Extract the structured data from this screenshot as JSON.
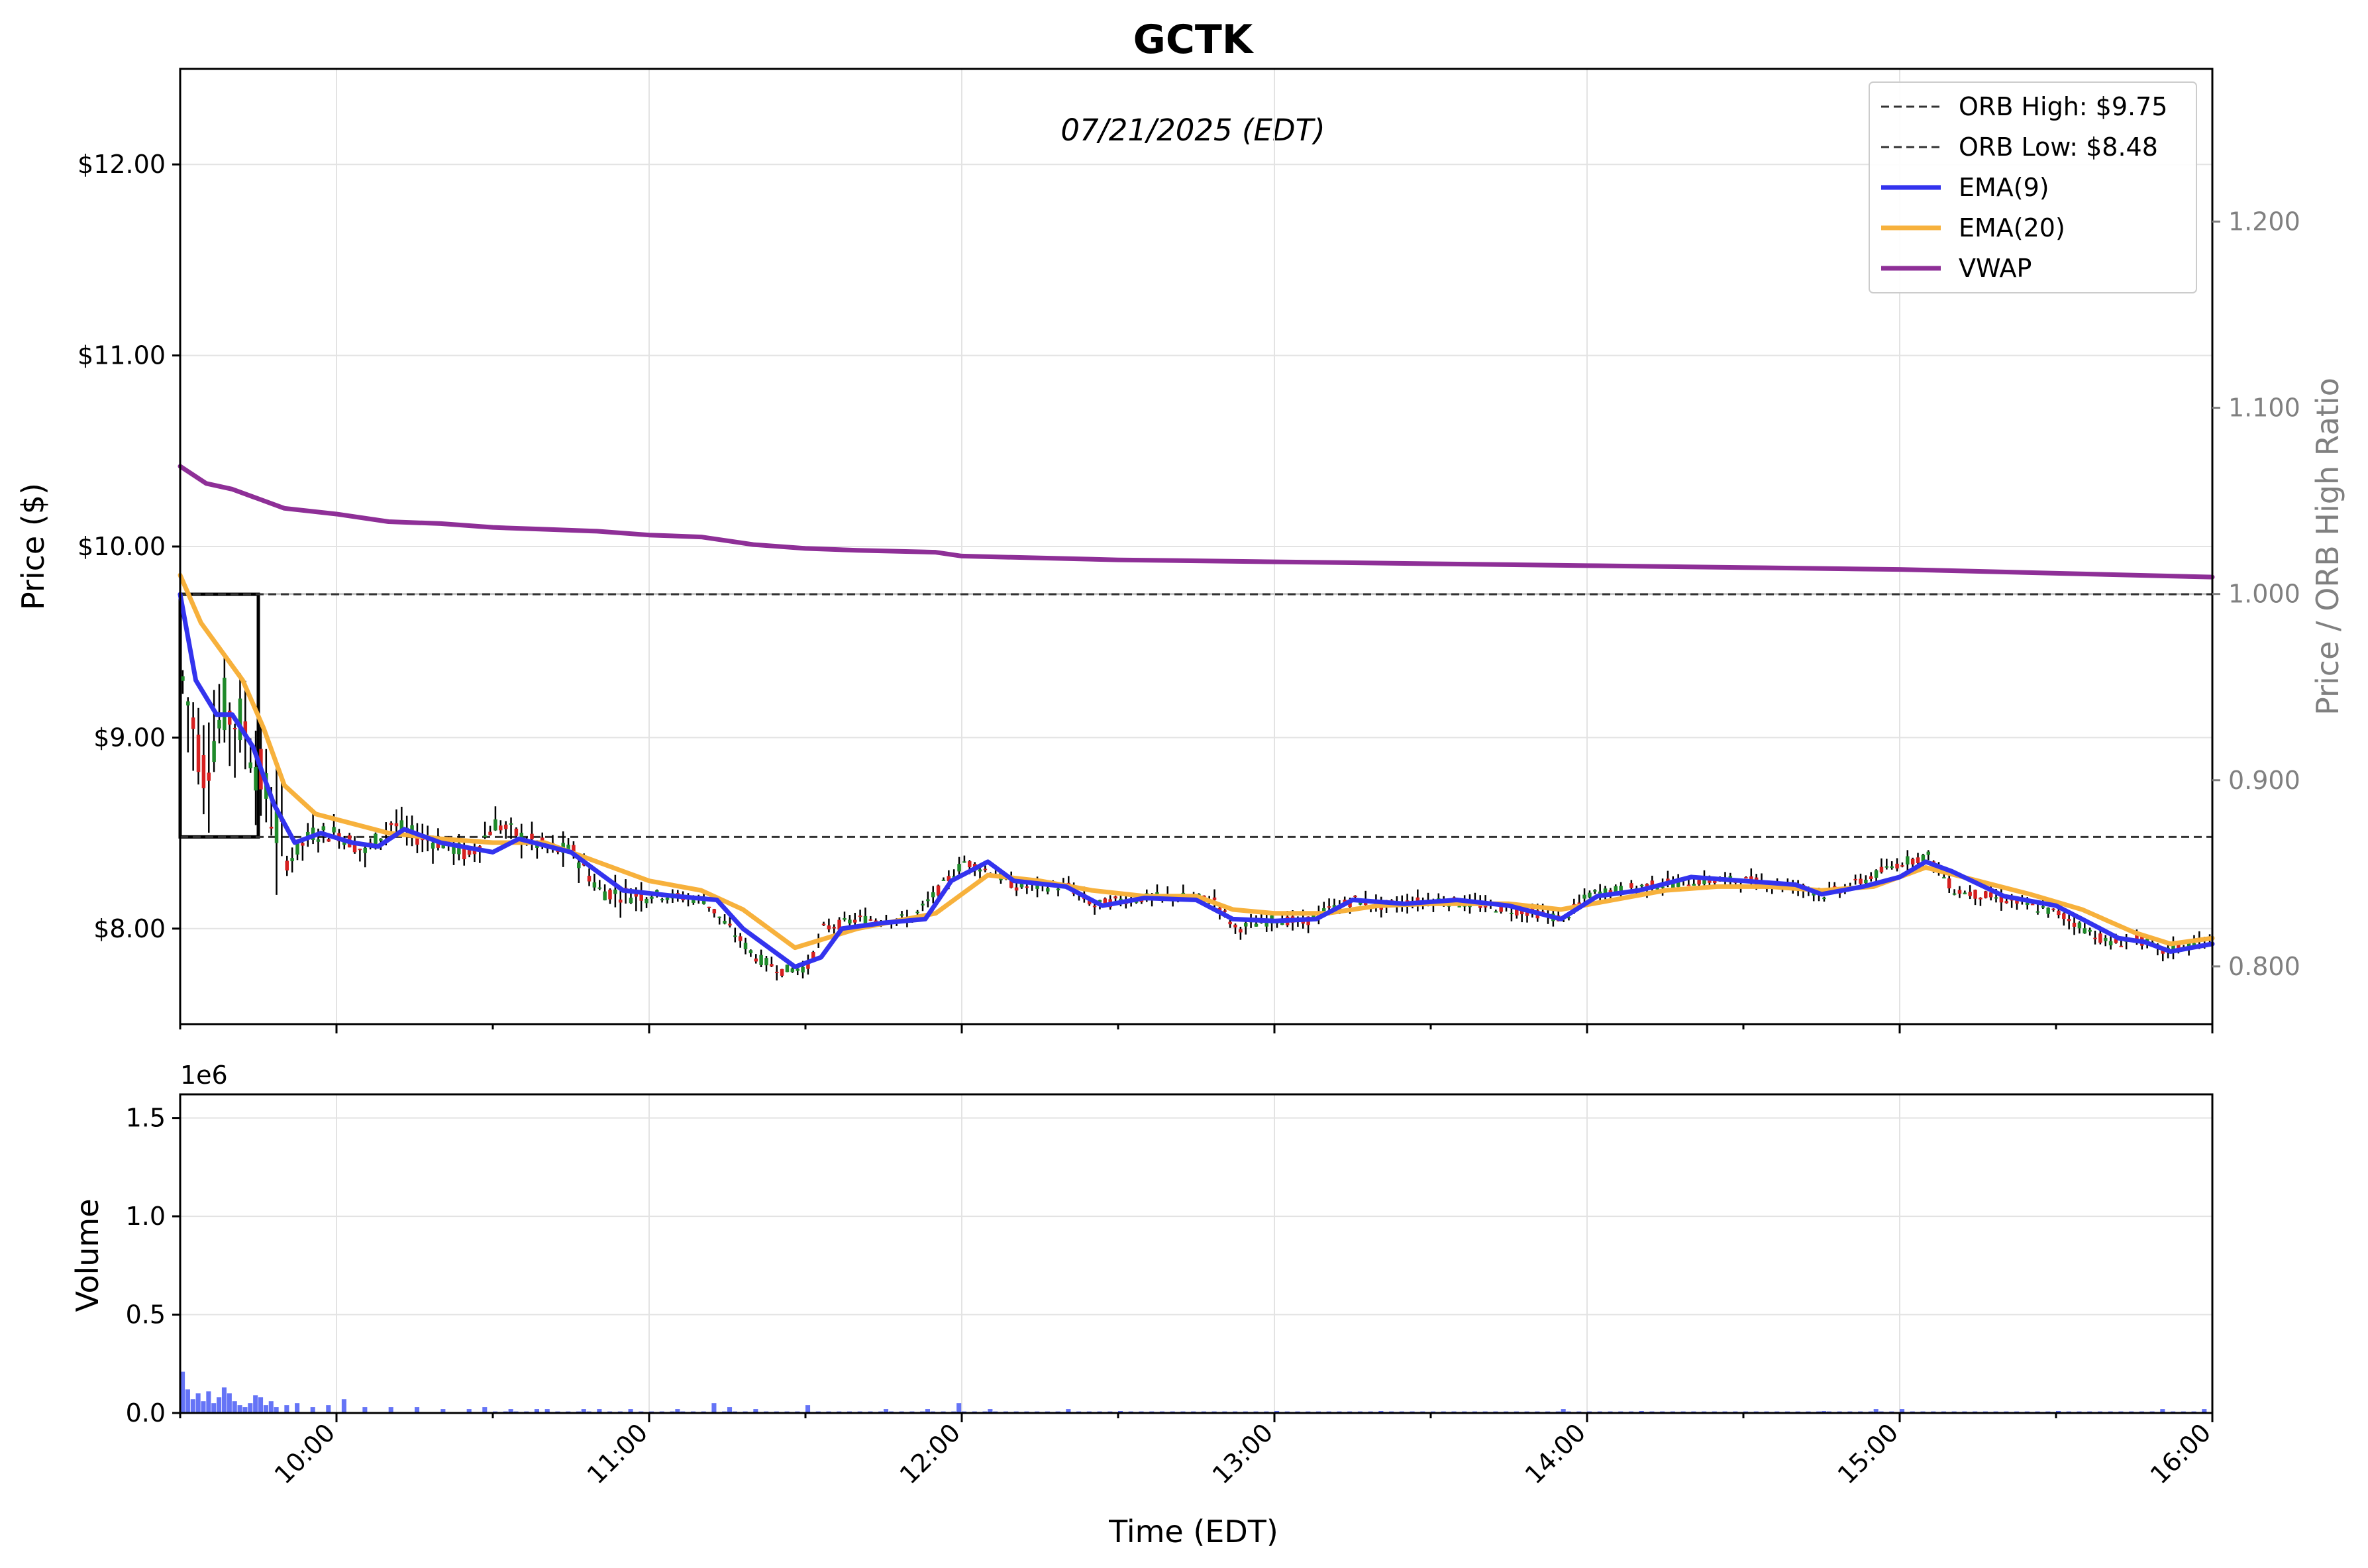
{
  "chart_data": {
    "type": "candlestick",
    "title": "GCTK",
    "subtitle": "07/21/2025 (EDT)",
    "xlabel": "Time (EDT)",
    "x_range": [
      "09:30",
      "16:00"
    ],
    "x_ticks": [
      "10:00",
      "11:00",
      "12:00",
      "13:00",
      "14:00",
      "15:00",
      "16:00"
    ],
    "price_panel": {
      "ylabel": "Price ($)",
      "ylim": [
        7.5,
        12.5
      ],
      "y_ticks": [
        "$8.00",
        "$9.00",
        "$10.00",
        "$11.00",
        "$12.00"
      ],
      "y_tick_values": [
        8,
        9,
        10,
        11,
        12
      ],
      "right_ylabel": "Price / ORB High Ratio",
      "right_ylim": [
        0.769,
        1.282
      ],
      "right_ticks": [
        "0.800",
        "0.900",
        "1.000",
        "1.100",
        "1.200"
      ],
      "right_tick_values": [
        0.8,
        0.9,
        1.0,
        1.1,
        1.2
      ],
      "orb_high": 9.75,
      "orb_low": 8.48,
      "orb_window": [
        "09:30",
        "09:45"
      ],
      "grid": true,
      "legend_position": "top-right",
      "legend": [
        {
          "label": "ORB High: $9.75",
          "style": "dashed",
          "color": "#333333"
        },
        {
          "label": "ORB Low: $8.48",
          "style": "dashed",
          "color": "#333333"
        },
        {
          "label": "EMA(9)",
          "style": "solid",
          "color": "#3333ee"
        },
        {
          "label": "EMA(20)",
          "style": "solid",
          "color": "#f7b13c"
        },
        {
          "label": "VWAP",
          "style": "solid",
          "color": "#8e2f97"
        }
      ],
      "price_path": [
        [
          "09:30",
          9.3
        ],
        [
          "09:34",
          8.85
        ],
        [
          "09:38",
          9.15
        ],
        [
          "09:42",
          9.05
        ],
        [
          "09:46",
          8.7
        ],
        [
          "09:50",
          8.35
        ],
        [
          "09:55",
          8.5
        ],
        [
          "10:00",
          8.5
        ],
        [
          "10:05",
          8.4
        ],
        [
          "10:10",
          8.55
        ],
        [
          "10:15",
          8.48
        ],
        [
          "10:20",
          8.45
        ],
        [
          "10:25",
          8.38
        ],
        [
          "10:30",
          8.55
        ],
        [
          "10:35",
          8.48
        ],
        [
          "10:40",
          8.42
        ],
        [
          "10:45",
          8.4
        ],
        [
          "10:50",
          8.2
        ],
        [
          "10:55",
          8.18
        ],
        [
          "11:00",
          8.18
        ],
        [
          "11:10",
          8.15
        ],
        [
          "11:15",
          8.0
        ],
        [
          "11:20",
          7.85
        ],
        [
          "11:25",
          7.78
        ],
        [
          "11:30",
          7.8
        ],
        [
          "11:33",
          8.0
        ],
        [
          "11:40",
          8.05
        ],
        [
          "11:50",
          8.05
        ],
        [
          "11:55",
          8.2
        ],
        [
          "12:00",
          8.35
        ],
        [
          "12:05",
          8.3
        ],
        [
          "12:10",
          8.22
        ],
        [
          "12:20",
          8.22
        ],
        [
          "12:25",
          8.12
        ],
        [
          "12:30",
          8.15
        ],
        [
          "12:40",
          8.17
        ],
        [
          "12:48",
          8.15
        ],
        [
          "12:52",
          8.0
        ],
        [
          "13:00",
          8.05
        ],
        [
          "13:05",
          8.03
        ],
        [
          "13:10",
          8.1
        ],
        [
          "13:15",
          8.15
        ],
        [
          "13:20",
          8.12
        ],
        [
          "13:30",
          8.15
        ],
        [
          "13:40",
          8.12
        ],
        [
          "13:50",
          8.08
        ],
        [
          "13:55",
          8.05
        ],
        [
          "14:00",
          8.18
        ],
        [
          "14:10",
          8.22
        ],
        [
          "14:20",
          8.25
        ],
        [
          "14:30",
          8.25
        ],
        [
          "14:40",
          8.22
        ],
        [
          "14:45",
          8.18
        ],
        [
          "14:50",
          8.22
        ],
        [
          "15:00",
          8.35
        ],
        [
          "15:05",
          8.38
        ],
        [
          "15:10",
          8.2
        ],
        [
          "15:20",
          8.15
        ],
        [
          "15:30",
          8.08
        ],
        [
          "15:35",
          8.0
        ],
        [
          "15:40",
          7.92
        ],
        [
          "15:45",
          7.95
        ],
        [
          "15:50",
          7.88
        ],
        [
          "16:00",
          7.95
        ]
      ],
      "ema9": [
        [
          "09:30",
          9.75
        ],
        [
          "09:33",
          9.3
        ],
        [
          "09:37",
          9.12
        ],
        [
          "09:40",
          9.12
        ],
        [
          "09:44",
          8.95
        ],
        [
          "09:48",
          8.65
        ],
        [
          "09:52",
          8.45
        ],
        [
          "09:57",
          8.5
        ],
        [
          "10:03",
          8.45
        ],
        [
          "10:08",
          8.43
        ],
        [
          "10:13",
          8.52
        ],
        [
          "10:20",
          8.45
        ],
        [
          "10:30",
          8.4
        ],
        [
          "10:35",
          8.47
        ],
        [
          "10:45",
          8.4
        ],
        [
          "10:50",
          8.3
        ],
        [
          "10:55",
          8.2
        ],
        [
          "11:05",
          8.17
        ],
        [
          "11:13",
          8.15
        ],
        [
          "11:18",
          8.0
        ],
        [
          "11:28",
          7.8
        ],
        [
          "11:33",
          7.85
        ],
        [
          "11:37",
          8.0
        ],
        [
          "11:45",
          8.03
        ],
        [
          "11:53",
          8.05
        ],
        [
          "11:58",
          8.25
        ],
        [
          "12:05",
          8.35
        ],
        [
          "12:10",
          8.25
        ],
        [
          "12:20",
          8.22
        ],
        [
          "12:27",
          8.12
        ],
        [
          "12:35",
          8.16
        ],
        [
          "12:45",
          8.15
        ],
        [
          "12:52",
          8.05
        ],
        [
          "13:00",
          8.04
        ],
        [
          "13:08",
          8.05
        ],
        [
          "13:15",
          8.15
        ],
        [
          "13:25",
          8.13
        ],
        [
          "13:35",
          8.15
        ],
        [
          "13:45",
          8.12
        ],
        [
          "13:55",
          8.05
        ],
        [
          "14:02",
          8.17
        ],
        [
          "14:10",
          8.2
        ],
        [
          "14:20",
          8.27
        ],
        [
          "14:30",
          8.25
        ],
        [
          "14:40",
          8.23
        ],
        [
          "14:45",
          8.18
        ],
        [
          "14:53",
          8.22
        ],
        [
          "15:00",
          8.27
        ],
        [
          "15:05",
          8.35
        ],
        [
          "15:10",
          8.3
        ],
        [
          "15:20",
          8.17
        ],
        [
          "15:30",
          8.12
        ],
        [
          "15:35",
          8.05
        ],
        [
          "15:42",
          7.95
        ],
        [
          "15:47",
          7.93
        ],
        [
          "15:52",
          7.88
        ],
        [
          "16:00",
          7.92
        ]
      ],
      "ema20": [
        [
          "09:30",
          9.85
        ],
        [
          "09:34",
          9.6
        ],
        [
          "09:38",
          9.45
        ],
        [
          "09:42",
          9.3
        ],
        [
          "09:46",
          9.05
        ],
        [
          "09:50",
          8.75
        ],
        [
          "09:56",
          8.6
        ],
        [
          "10:03",
          8.55
        ],
        [
          "10:10",
          8.5
        ],
        [
          "10:20",
          8.47
        ],
        [
          "10:30",
          8.45
        ],
        [
          "10:40",
          8.45
        ],
        [
          "10:50",
          8.35
        ],
        [
          "11:00",
          8.25
        ],
        [
          "11:10",
          8.2
        ],
        [
          "11:18",
          8.1
        ],
        [
          "11:28",
          7.9
        ],
        [
          "11:34",
          7.95
        ],
        [
          "11:40",
          8.0
        ],
        [
          "11:55",
          8.08
        ],
        [
          "12:05",
          8.28
        ],
        [
          "12:15",
          8.25
        ],
        [
          "12:25",
          8.2
        ],
        [
          "12:35",
          8.17
        ],
        [
          "12:45",
          8.17
        ],
        [
          "12:52",
          8.1
        ],
        [
          "13:00",
          8.08
        ],
        [
          "13:10",
          8.08
        ],
        [
          "13:20",
          8.12
        ],
        [
          "13:30",
          8.13
        ],
        [
          "13:45",
          8.13
        ],
        [
          "13:55",
          8.1
        ],
        [
          "14:05",
          8.15
        ],
        [
          "14:15",
          8.2
        ],
        [
          "14:25",
          8.22
        ],
        [
          "14:35",
          8.22
        ],
        [
          "14:45",
          8.2
        ],
        [
          "14:55",
          8.22
        ],
        [
          "15:05",
          8.32
        ],
        [
          "15:15",
          8.25
        ],
        [
          "15:25",
          8.18
        ],
        [
          "15:35",
          8.1
        ],
        [
          "15:45",
          7.98
        ],
        [
          "15:52",
          7.92
        ],
        [
          "16:00",
          7.95
        ]
      ],
      "vwap": [
        [
          "09:30",
          10.42
        ],
        [
          "09:35",
          10.33
        ],
        [
          "09:40",
          10.3
        ],
        [
          "09:45",
          10.25
        ],
        [
          "09:50",
          10.2
        ],
        [
          "10:00",
          10.17
        ],
        [
          "10:10",
          10.13
        ],
        [
          "10:20",
          10.12
        ],
        [
          "10:30",
          10.1
        ],
        [
          "10:40",
          10.09
        ],
        [
          "10:50",
          10.08
        ],
        [
          "11:00",
          10.06
        ],
        [
          "11:10",
          10.05
        ],
        [
          "11:15",
          10.03
        ],
        [
          "11:20",
          10.01
        ],
        [
          "11:30",
          9.99
        ],
        [
          "11:40",
          9.98
        ],
        [
          "11:55",
          9.97
        ],
        [
          "12:00",
          9.95
        ],
        [
          "12:15",
          9.94
        ],
        [
          "12:30",
          9.93
        ],
        [
          "13:00",
          9.92
        ],
        [
          "13:30",
          9.91
        ],
        [
          "14:00",
          9.9
        ],
        [
          "14:30",
          9.89
        ],
        [
          "15:00",
          9.88
        ],
        [
          "15:30",
          9.86
        ],
        [
          "16:00",
          9.84
        ]
      ]
    },
    "volume_panel": {
      "ylabel": "Volume",
      "scale_label": "1e6",
      "ylim": [
        0,
        1.62
      ],
      "y_ticks": [
        "0.0",
        "0.5",
        "1.0",
        "1.5"
      ],
      "y_tick_values": [
        0,
        0.5,
        1.0,
        1.5
      ],
      "unit": "millions of shares",
      "color": "#4a5cf5",
      "bars": [
        [
          "09:30",
          0.21
        ],
        [
          "09:31",
          0.12
        ],
        [
          "09:32",
          0.07
        ],
        [
          "09:33",
          0.1
        ],
        [
          "09:34",
          0.06
        ],
        [
          "09:35",
          0.11
        ],
        [
          "09:36",
          0.05
        ],
        [
          "09:37",
          0.08
        ],
        [
          "09:38",
          0.13
        ],
        [
          "09:39",
          0.1
        ],
        [
          "09:40",
          0.06
        ],
        [
          "09:41",
          0.04
        ],
        [
          "09:42",
          0.03
        ],
        [
          "09:43",
          0.05
        ],
        [
          "09:44",
          0.09
        ],
        [
          "09:45",
          0.08
        ],
        [
          "09:46",
          0.04
        ],
        [
          "09:47",
          0.06
        ],
        [
          "09:48",
          0.03
        ],
        [
          "09:50",
          0.04
        ],
        [
          "09:52",
          0.05
        ],
        [
          "09:55",
          0.03
        ],
        [
          "09:58",
          0.04
        ],
        [
          "10:01",
          0.07
        ],
        [
          "10:05",
          0.03
        ],
        [
          "10:10",
          0.03
        ],
        [
          "10:15",
          0.03
        ],
        [
          "10:20",
          0.02
        ],
        [
          "10:25",
          0.02
        ],
        [
          "10:28",
          0.03
        ],
        [
          "10:33",
          0.02
        ],
        [
          "10:38",
          0.02
        ],
        [
          "10:40",
          0.02
        ],
        [
          "10:47",
          0.02
        ],
        [
          "10:50",
          0.02
        ],
        [
          "10:56",
          0.02
        ],
        [
          "11:05",
          0.02
        ],
        [
          "11:12",
          0.05
        ],
        [
          "11:15",
          0.03
        ],
        [
          "11:20",
          0.02
        ],
        [
          "11:30",
          0.04
        ],
        [
          "11:45",
          0.02
        ],
        [
          "11:53",
          0.02
        ],
        [
          "11:59",
          0.05
        ],
        [
          "12:05",
          0.02
        ],
        [
          "12:20",
          0.02
        ],
        [
          "12:30",
          0.01
        ],
        [
          "13:00",
          0.01
        ],
        [
          "13:20",
          0.01
        ],
        [
          "13:55",
          0.02
        ],
        [
          "14:10",
          0.01
        ],
        [
          "14:45",
          0.01
        ],
        [
          "14:55",
          0.02
        ],
        [
          "15:00",
          0.02
        ],
        [
          "15:30",
          0.01
        ],
        [
          "15:50",
          0.02
        ],
        [
          "15:58",
          0.02
        ]
      ]
    }
  }
}
